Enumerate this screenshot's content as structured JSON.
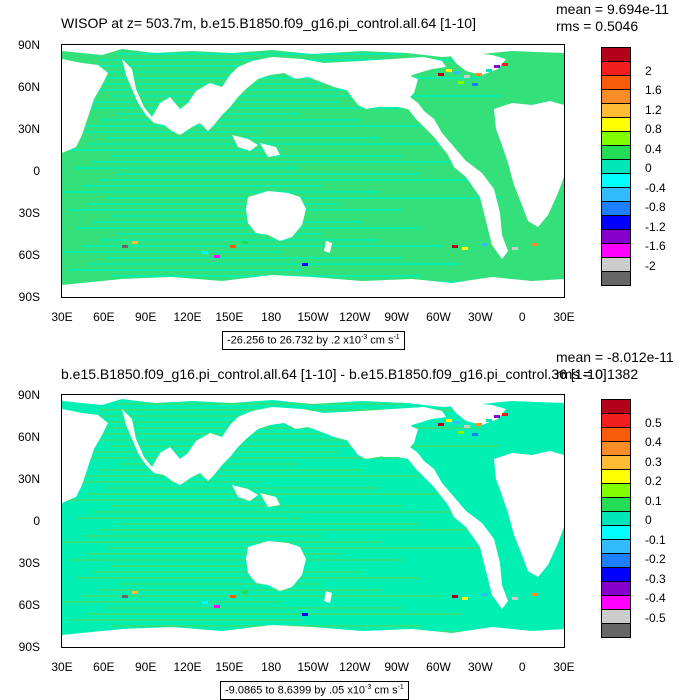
{
  "panels": [
    {
      "title": "WISOP at z= 503.7m, b.e15.B1850.f09_g16.pi_control.all.64 [1-10]",
      "mean_text": "mean = 9.694e-11",
      "rms_text": "rms = 0.5046",
      "range_main": "-26.256 to 26.732 by .2 x10",
      "range_exp": "-3",
      "range_unit": " cm s",
      "range_unit_exp": "-1",
      "colorbar_labels": [
        "2",
        "1.6",
        "1.2",
        "0.8",
        "0.4",
        "0",
        "-0.4",
        "-0.8",
        "-1.2",
        "-1.6",
        "-2"
      ]
    },
    {
      "title": "b.e15.B1850.f09_g16.pi_control.all.64 [1-10] - b.e15.B1850.f09_g16.pi_control.36 [1-10]",
      "mean_text": "mean = -8.012e-11",
      "rms_text": "rms = 0.1382",
      "range_main": "-9.0865 to 8.6399 by .05 x10",
      "range_exp": "-3",
      "range_unit": " cm s",
      "range_unit_exp": "-1",
      "colorbar_labels": [
        "0.5",
        "0.4",
        "0.3",
        "0.2",
        "0.1",
        "0",
        "-0.1",
        "-0.2",
        "-0.3",
        "-0.4",
        "-0.5"
      ]
    }
  ],
  "lat_labels": [
    "90N",
    "60N",
    "30N",
    "0",
    "30S",
    "60S",
    "90S"
  ],
  "lon_labels": [
    "30E",
    "60E",
    "90E",
    "120E",
    "150E",
    "180",
    "150W",
    "120W",
    "90W",
    "60W",
    "30W",
    "0",
    "30E"
  ],
  "colors": {
    "ocean_base": "#33e07a",
    "ocean_alt": "#00f0b4",
    "land": "#ffffff",
    "colorbar": [
      "#b3001b",
      "#f21e1e",
      "#f85b0a",
      "#fb8c2a",
      "#ffbb33",
      "#ffff00",
      "#7fff00",
      "#22dd55",
      "#00e6b4",
      "#00ffff",
      "#33bbff",
      "#1e7fff",
      "#0000ff",
      "#8800cc",
      "#ff00ff",
      "#cccccc",
      "#666666"
    ]
  }
}
